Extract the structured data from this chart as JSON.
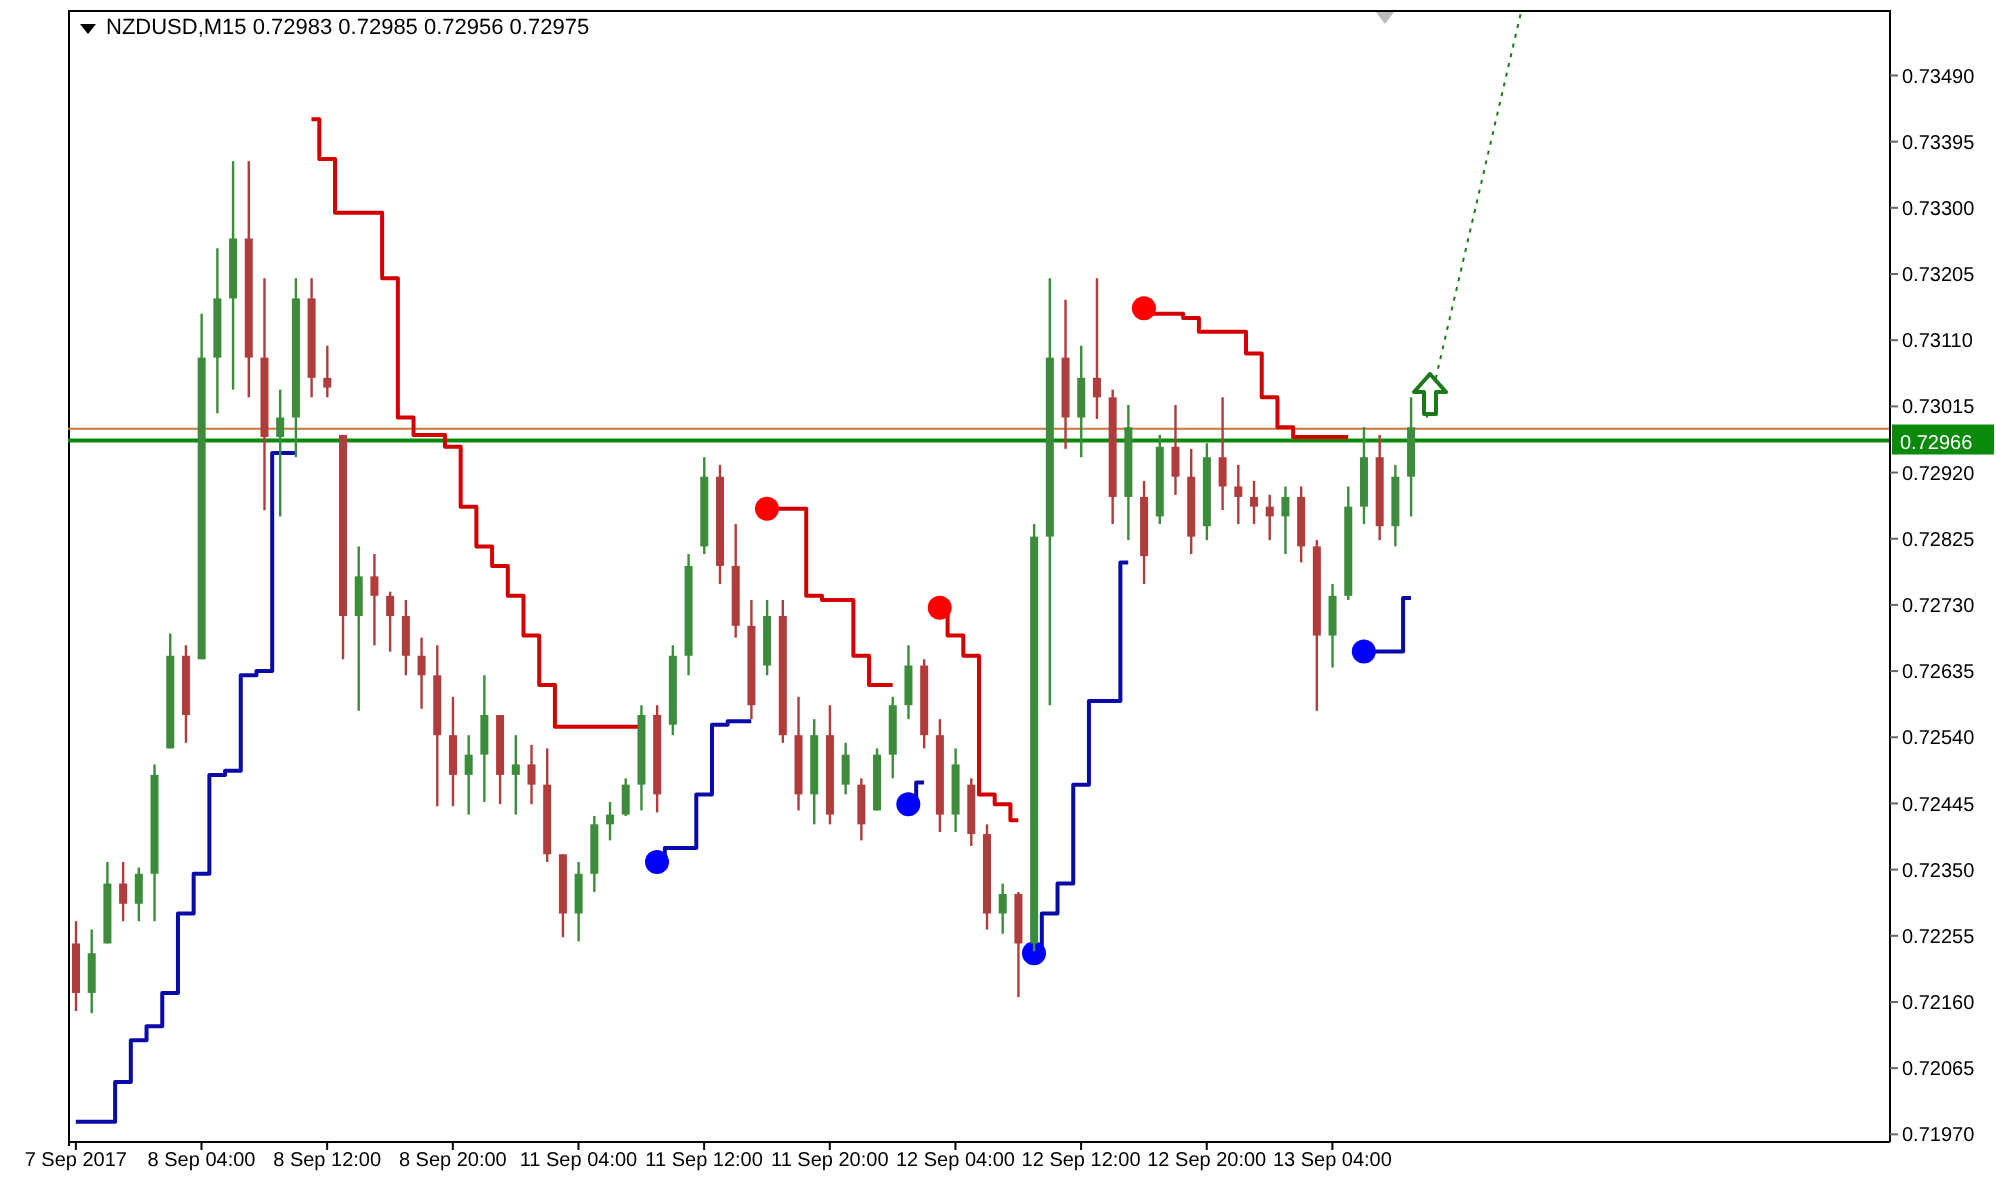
{
  "chart_data": {
    "type": "candlestick",
    "title": "NZDUSD,M15  0.72983 0.72985 0.72956 0.72975",
    "categories": [
      "7 Sep 2017",
      null,
      null,
      null,
      null,
      null,
      null,
      null,
      "8 Sep 04:00",
      null,
      null,
      null,
      null,
      null,
      null,
      null,
      "8 Sep 12:00",
      null,
      null,
      null,
      null,
      null,
      null,
      null,
      "8 Sep 20:00",
      null,
      null,
      null,
      null,
      null,
      null,
      null,
      "11 Sep 04:00",
      null,
      null,
      null,
      null,
      null,
      null,
      null,
      "11 Sep 12:00",
      null,
      null,
      null,
      null,
      null,
      null,
      null,
      "11 Sep 20:00",
      null,
      null,
      null,
      null,
      null,
      null,
      null,
      "12 Sep 04:00",
      null,
      null,
      null,
      null,
      null,
      null,
      null,
      "12 Sep 12:00",
      null,
      null,
      null,
      null,
      null,
      null,
      null,
      "12 Sep 20:00",
      null,
      null,
      null,
      null,
      null,
      null,
      null,
      "13 Sep 04:00",
      null,
      null,
      null,
      null,
      null,
      null,
      null,
      null,
      null,
      null,
      null,
      null,
      null,
      null,
      null,
      null,
      null,
      null,
      null,
      null,
      null,
      null,
      null,
      null,
      null,
      null,
      null,
      null,
      null,
      null,
      null,
      null,
      null,
      null,
      null
    ],
    "ohlc": [
      [
        0.72244,
        0.72276,
        0.72147,
        0.72173
      ],
      [
        0.72173,
        0.72264,
        0.72144,
        0.7223
      ],
      [
        0.72244,
        0.72361,
        0.72244,
        0.7233
      ],
      [
        0.7233,
        0.72361,
        0.72276,
        0.72301
      ],
      [
        0.72301,
        0.72353,
        0.72276,
        0.72344
      ],
      [
        0.72344,
        0.72501,
        0.72276,
        0.72486
      ],
      [
        0.72524,
        0.72689,
        0.72524,
        0.72657
      ],
      [
        0.72657,
        0.72672,
        0.72532,
        0.72572
      ],
      [
        0.72652,
        0.73148,
        0.72652,
        0.73085
      ],
      [
        0.73085,
        0.73242,
        0.73005,
        0.7317
      ],
      [
        0.7317,
        0.73367,
        0.73039,
        0.73256
      ],
      [
        0.73256,
        0.73367,
        0.73028,
        0.73085
      ],
      [
        0.73085,
        0.73199,
        0.72866,
        0.72971
      ],
      [
        0.72971,
        0.73039,
        0.72857,
        0.72999
      ],
      [
        0.72999,
        0.73199,
        0.72942,
        0.7317
      ],
      [
        0.7317,
        0.73199,
        0.73028,
        0.73056
      ],
      [
        0.73056,
        0.73102,
        0.73028,
        0.73042
      ],
      [
        0.72974,
        0.72974,
        0.72652,
        0.72714
      ],
      [
        0.72714,
        0.72814,
        0.72578,
        0.72771
      ],
      [
        0.72771,
        0.72803,
        0.72672,
        0.72743
      ],
      [
        0.72743,
        0.72749,
        0.72663,
        0.72714
      ],
      [
        0.72714,
        0.72737,
        0.72629,
        0.72657
      ],
      [
        0.72657,
        0.72683,
        0.72581,
        0.72629
      ],
      [
        0.72629,
        0.72672,
        0.72441,
        0.72543
      ],
      [
        0.72543,
        0.72598,
        0.72441,
        0.72486
      ],
      [
        0.72486,
        0.72543,
        0.72429,
        0.72515
      ],
      [
        0.72515,
        0.72629,
        0.72447,
        0.72572
      ],
      [
        0.72572,
        0.72572,
        0.72444,
        0.72486
      ],
      [
        0.72486,
        0.72543,
        0.72429,
        0.72501
      ],
      [
        0.72501,
        0.72529,
        0.72444,
        0.72472
      ],
      [
        0.72472,
        0.72524,
        0.72361,
        0.72372
      ],
      [
        0.72372,
        0.72372,
        0.72253,
        0.72287
      ],
      [
        0.72287,
        0.72361,
        0.72247,
        0.72344
      ],
      [
        0.72344,
        0.72427,
        0.72318,
        0.72415
      ],
      [
        0.72415,
        0.72447,
        0.72392,
        0.72429
      ],
      [
        0.72429,
        0.72481,
        0.72427,
        0.72472
      ],
      [
        0.72472,
        0.72586,
        0.72435,
        0.72572
      ],
      [
        0.72572,
        0.72586,
        0.72432,
        0.72458
      ],
      [
        0.72558,
        0.72672,
        0.72543,
        0.72657
      ],
      [
        0.72657,
        0.72803,
        0.72629,
        0.72786
      ],
      [
        0.72814,
        0.72942,
        0.72803,
        0.72914
      ],
      [
        0.72914,
        0.72931,
        0.7276,
        0.72786
      ],
      [
        0.72786,
        0.72846,
        0.72683,
        0.727
      ],
      [
        0.727,
        0.72737,
        0.72566,
        0.72586
      ],
      [
        0.72643,
        0.72737,
        0.72629,
        0.72714
      ],
      [
        0.72714,
        0.72737,
        0.72532,
        0.72543
      ],
      [
        0.72543,
        0.72598,
        0.72435,
        0.72458
      ],
      [
        0.72458,
        0.72566,
        0.72415,
        0.72543
      ],
      [
        0.72543,
        0.72586,
        0.72415,
        0.72429
      ],
      [
        0.72472,
        0.72532,
        0.72458,
        0.72515
      ],
      [
        0.72472,
        0.72481,
        0.72392,
        0.72415
      ],
      [
        0.72435,
        0.72524,
        0.72435,
        0.72515
      ],
      [
        0.72515,
        0.72598,
        0.72481,
        0.72586
      ],
      [
        0.72586,
        0.72672,
        0.72566,
        0.72643
      ],
      [
        0.72643,
        0.72652,
        0.72524,
        0.72543
      ],
      [
        0.72543,
        0.72566,
        0.72404,
        0.72429
      ],
      [
        0.72429,
        0.72524,
        0.72404,
        0.72501
      ],
      [
        0.72472,
        0.72481,
        0.72384,
        0.72401
      ],
      [
        0.72401,
        0.72415,
        0.72264,
        0.72287
      ],
      [
        0.72287,
        0.7233,
        0.72258,
        0.72315
      ],
      [
        0.72315,
        0.72318,
        0.72167,
        0.72244
      ],
      [
        0.72244,
        0.72846,
        0.72233,
        0.72828
      ],
      [
        0.72828,
        0.73199,
        0.72586,
        0.73085
      ],
      [
        0.73085,
        0.73168,
        0.72954,
        0.72999
      ],
      [
        0.72999,
        0.73102,
        0.72942,
        0.73056
      ],
      [
        0.73056,
        0.73199,
        0.72997,
        0.73028
      ],
      [
        0.73028,
        0.73039,
        0.72846,
        0.72885
      ],
      [
        0.72885,
        0.73017,
        0.72823,
        0.72985
      ],
      [
        0.72885,
        0.72908,
        0.7276,
        0.728
      ],
      [
        0.72857,
        0.72974,
        0.72846,
        0.72957
      ],
      [
        0.72957,
        0.73017,
        0.72888,
        0.72914
      ],
      [
        0.72914,
        0.72954,
        0.72803,
        0.72828
      ],
      [
        0.72843,
        0.72962,
        0.72823,
        0.72942
      ],
      [
        0.72942,
        0.73028,
        0.72866,
        0.729
      ],
      [
        0.729,
        0.72931,
        0.72846,
        0.72885
      ],
      [
        0.72885,
        0.72908,
        0.72846,
        0.72871
      ],
      [
        0.72871,
        0.72888,
        0.72823,
        0.72857
      ],
      [
        0.72857,
        0.729,
        0.72803,
        0.72885
      ],
      [
        0.72885,
        0.729,
        0.72791,
        0.72814
      ],
      [
        0.72814,
        0.72823,
        0.72578,
        0.72686
      ],
      [
        0.72686,
        0.7276,
        0.7264,
        0.72743
      ],
      [
        0.72743,
        0.729,
        0.72737,
        0.72871
      ],
      [
        0.72871,
        0.72985,
        0.72846,
        0.72942
      ],
      [
        0.72942,
        0.72974,
        0.72823,
        0.72843
      ],
      [
        0.72843,
        0.72931,
        0.72814,
        0.72914
      ],
      [
        0.72914,
        0.73028,
        0.72857,
        0.72985
      ],
      null,
      null,
      null,
      null,
      null,
      null,
      null,
      null,
      null,
      null,
      null,
      null,
      null,
      null,
      null,
      null,
      null,
      null,
      null,
      null,
      null,
      null,
      null,
      null,
      null,
      null,
      null,
      null,
      null,
      null
    ],
    "colors": [
      "#b03c3c",
      "#3c8c3c",
      "#3c8c3c",
      "#b03c3c",
      "#3c8c3c",
      "#3c8c3c",
      "#3c8c3c",
      "#b03c3c",
      "#3c8c3c",
      "#3c8c3c",
      "#3c8c3c",
      "#b03c3c",
      "#b03c3c",
      "#3c8c3c",
      "#3c8c3c",
      "#b03c3c",
      "#b03c3c",
      "#b03c3c",
      "#3c8c3c",
      "#b03c3c",
      "#b03c3c",
      "#b03c3c",
      "#b03c3c",
      "#b03c3c",
      "#b03c3c",
      "#3c8c3c",
      "#3c8c3c",
      "#b03c3c",
      "#3c8c3c",
      "#b03c3c",
      "#b03c3c",
      "#b03c3c",
      "#3c8c3c",
      "#3c8c3c",
      "#3c8c3c",
      "#3c8c3c",
      "#3c8c3c",
      "#b03c3c",
      "#3c8c3c",
      "#3c8c3c",
      "#3c8c3c",
      "#b03c3c",
      "#b03c3c",
      "#b03c3c",
      "#3c8c3c",
      "#b03c3c",
      "#b03c3c",
      "#3c8c3c",
      "#b03c3c",
      "#3c8c3c",
      "#b03c3c",
      "#3c8c3c",
      "#3c8c3c",
      "#3c8c3c",
      "#b03c3c",
      "#b03c3c",
      "#3c8c3c",
      "#b03c3c",
      "#b03c3c",
      "#3c8c3c",
      "#b03c3c",
      "#3c8c3c",
      "#3c8c3c",
      "#b03c3c",
      "#3c8c3c",
      "#b03c3c",
      "#b03c3c",
      "#3c8c3c",
      "#b03c3c",
      "#3c8c3c",
      "#b03c3c",
      "#b03c3c",
      "#3c8c3c",
      "#b03c3c",
      "#b03c3c",
      "#b03c3c",
      "#b03c3c",
      "#3c8c3c",
      "#b03c3c",
      "#b03c3c",
      "#3c8c3c",
      "#3c8c3c",
      "#3c8c3c",
      "#b03c3c",
      "#3c8c3c",
      "#3c8c3c",
      null,
      null,
      null,
      null,
      null,
      null,
      null,
      null,
      null,
      null,
      null,
      null,
      null,
      null,
      null,
      null,
      null,
      null,
      null,
      null,
      null,
      null,
      null,
      null,
      null,
      null,
      null,
      null,
      null,
      null
    ],
    "series": [
      {
        "type": "step",
        "color": "#d40000",
        "values": [
          null,
          null,
          null,
          null,
          null,
          null,
          null,
          null,
          null,
          null,
          null,
          null,
          null,
          null,
          null,
          0.73427,
          0.7337,
          0.73293,
          0.73293,
          0.73293,
          0.73199,
          0.72999,
          0.72974,
          0.72974,
          0.72957,
          0.72871,
          0.72814,
          0.72786,
          0.72743,
          0.72686,
          0.72615,
          0.72555,
          0.72555,
          0.72555,
          0.72555,
          0.72555,
          0.72555,
          null,
          null,
          null,
          null,
          null,
          null,
          null,
          0.72868,
          0.72868,
          0.72868,
          0.72743,
          0.72737,
          0.72737,
          0.72657,
          0.72615,
          0.72615,
          null,
          null,
          0.72726,
          0.72686,
          0.72657,
          0.72458,
          0.72444,
          0.72421,
          null,
          null,
          null,
          null,
          null,
          null,
          null,
          0.73156,
          0.73148,
          0.73148,
          0.73142,
          0.73122,
          0.73122,
          0.73122,
          0.73091,
          0.73028,
          0.72985,
          0.72971,
          0.72971,
          0.72971,
          0.72971,
          null,
          null,
          null,
          null,
          null,
          null,
          null,
          null,
          null,
          null,
          null,
          null,
          null,
          null,
          null,
          null,
          null,
          null,
          null,
          null,
          null,
          null,
          null,
          null,
          null,
          null,
          null,
          null,
          null,
          null,
          null,
          null,
          null,
          null
        ]
      },
      {
        "type": "step",
        "color": "#0a0aa8",
        "values": [
          0.71988,
          0.71988,
          0.71988,
          0.72045,
          0.72105,
          0.72125,
          0.72173,
          0.72287,
          0.72344,
          0.72486,
          0.72492,
          0.72629,
          0.72635,
          0.72948,
          0.72948,
          null,
          null,
          null,
          null,
          null,
          null,
          null,
          null,
          null,
          null,
          null,
          null,
          null,
          null,
          null,
          null,
          null,
          null,
          null,
          null,
          null,
          null,
          0.72361,
          0.72381,
          0.72381,
          0.72458,
          0.72558,
          0.72563,
          0.72563,
          null,
          null,
          null,
          null,
          null,
          null,
          null,
          null,
          null,
          0.72444,
          0.72475,
          null,
          null,
          null,
          null,
          null,
          null,
          0.7223,
          0.72287,
          0.7233,
          0.72472,
          0.72592,
          0.72592,
          0.72791,
          null,
          null,
          null,
          null,
          null,
          null,
          null,
          null,
          null,
          null,
          null,
          null,
          null,
          null,
          0.72663,
          0.72663,
          0.72663,
          0.7274,
          null,
          null,
          null,
          null,
          null,
          null,
          null,
          null,
          null,
          null,
          null,
          null,
          null,
          null,
          null,
          null,
          null,
          null,
          null,
          null,
          null,
          null,
          null,
          null,
          null,
          null,
          null,
          null,
          null,
          null
        ]
      },
      {
        "type": "line",
        "color": "#1a7a1a",
        "line_style": "dotted",
        "values": [
          null,
          null,
          null,
          null,
          null,
          null,
          null,
          null,
          null,
          null,
          null,
          null,
          null,
          null,
          null,
          null,
          null,
          null,
          null,
          null,
          null,
          null,
          null,
          null,
          null,
          null,
          null,
          null,
          null,
          null,
          null,
          null,
          null,
          null,
          null,
          null,
          null,
          null,
          null,
          null,
          null,
          null,
          null,
          null,
          null,
          null,
          null,
          null,
          null,
          null,
          null,
          null,
          null,
          null,
          null,
          null,
          null,
          null,
          null,
          null,
          null,
          null,
          null,
          null,
          null,
          null,
          null,
          null,
          null,
          null,
          null,
          null,
          null,
          null,
          null,
          null,
          null,
          null,
          null,
          null,
          null,
          null,
          null,
          null,
          null,
          null,
          0.72999,
          null,
          null,
          null,
          null,
          null,
          0.7358,
          null,
          null,
          null,
          null,
          null,
          null,
          null,
          null,
          null,
          null,
          null,
          null,
          null,
          null,
          null,
          null,
          null,
          null,
          null,
          null,
          null,
          null,
          null
        ]
      },
      {
        "type": "scatter",
        "marker": "circle",
        "color": "#ff0000",
        "values": [
          null,
          null,
          null,
          null,
          null,
          null,
          null,
          null,
          null,
          null,
          null,
          null,
          null,
          null,
          null,
          null,
          null,
          null,
          null,
          null,
          null,
          null,
          null,
          null,
          null,
          null,
          null,
          null,
          null,
          null,
          null,
          null,
          null,
          null,
          null,
          null,
          null,
          null,
          null,
          null,
          null,
          null,
          null,
          null,
          0.72868,
          null,
          null,
          null,
          null,
          null,
          null,
          null,
          null,
          null,
          null,
          0.72726,
          null,
          null,
          null,
          null,
          null,
          null,
          null,
          null,
          null,
          null,
          null,
          null,
          0.73156,
          null,
          null,
          null,
          null,
          null,
          null,
          null,
          null,
          null,
          null,
          null,
          null,
          null,
          null,
          null,
          null,
          null,
          null,
          null,
          null,
          null,
          null,
          null,
          null,
          null,
          null,
          null,
          null,
          null,
          null,
          null,
          null,
          null,
          null,
          null,
          null,
          null,
          null,
          null,
          null,
          null,
          null,
          null,
          null,
          null,
          null,
          null
        ]
      },
      {
        "type": "scatter",
        "marker": "circle",
        "color": "#0000ff",
        "values": [
          null,
          null,
          null,
          null,
          null,
          null,
          null,
          null,
          null,
          null,
          null,
          null,
          null,
          null,
          null,
          null,
          null,
          null,
          null,
          null,
          null,
          null,
          null,
          null,
          null,
          null,
          null,
          null,
          null,
          null,
          null,
          null,
          null,
          null,
          null,
          null,
          null,
          0.72361,
          null,
          null,
          null,
          null,
          null,
          null,
          null,
          null,
          null,
          null,
          null,
          null,
          null,
          null,
          null,
          0.72444,
          null,
          null,
          null,
          null,
          null,
          null,
          null,
          0.7223,
          null,
          null,
          null,
          null,
          null,
          null,
          null,
          null,
          null,
          null,
          null,
          null,
          null,
          null,
          null,
          null,
          null,
          null,
          null,
          null,
          0.72663,
          null,
          null,
          null,
          null,
          null,
          null,
          null,
          null,
          null,
          null,
          null,
          null,
          null,
          null,
          null,
          null,
          null,
          null,
          null,
          null,
          null,
          null,
          null,
          null,
          null,
          null,
          null,
          null,
          null,
          null,
          null,
          null,
          null
        ]
      }
    ],
    "ylim": [
      0.71959,
      0.73584
    ],
    "yticks": [
      {
        "value": 0.7197,
        "label": "0.71970"
      },
      {
        "value": 0.72065,
        "label": "0.72065"
      },
      {
        "value": 0.7216,
        "label": "0.72160"
      },
      {
        "value": 0.72255,
        "label": "0.72255"
      },
      {
        "value": 0.7235,
        "label": "0.72350"
      },
      {
        "value": 0.72445,
        "label": "0.72445"
      },
      {
        "value": 0.7254,
        "label": "0.72540"
      },
      {
        "value": 0.72635,
        "label": "0.72635"
      },
      {
        "value": 0.7273,
        "label": "0.72730"
      },
      {
        "value": 0.72825,
        "label": "0.72825"
      },
      {
        "value": 0.7292,
        "label": "0.72920"
      },
      {
        "value": 0.73015,
        "label": "0.73015"
      },
      {
        "value": 0.7311,
        "label": "0.73110"
      },
      {
        "value": 0.73205,
        "label": "0.73205"
      },
      {
        "value": 0.733,
        "label": "0.73300"
      },
      {
        "value": 0.73395,
        "label": "0.73395"
      },
      {
        "value": 0.7349,
        "label": "0.73490"
      }
    ],
    "ref_lines": [
      {
        "axis": "y",
        "value": 0.72983,
        "label": null,
        "color": "#c8783c"
      },
      {
        "axis": "y",
        "value": 0.72966,
        "label": "0.72966",
        "color": "#0a8a0a"
      }
    ],
    "legend": false,
    "grid": false
  }
}
